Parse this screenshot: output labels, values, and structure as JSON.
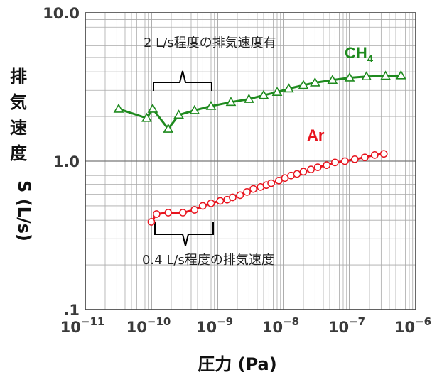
{
  "chart_data": {
    "type": "line",
    "title": "",
    "xlabel": "圧力 (Pa)",
    "ylabel_chars": [
      "排",
      "気",
      "速",
      "度"
    ],
    "ylabel_unit": "S (L/s)",
    "xscale": "log",
    "yscale": "log",
    "xlim": [
      1e-11,
      1e-06
    ],
    "ylim": [
      0.1,
      10
    ],
    "grid": true,
    "x_tick_labels": [
      {
        "base": "10",
        "exp": "−11"
      },
      {
        "base": "10",
        "exp": "−10"
      },
      {
        "base": "10",
        "exp": "−9"
      },
      {
        "base": "10",
        "exp": "−8"
      },
      {
        "base": "10",
        "exp": "−7"
      },
      {
        "base": "10",
        "exp": "−6"
      }
    ],
    "y_tick_labels": [
      ".1",
      "1.0",
      "10.0"
    ],
    "series": [
      {
        "name": "CH4",
        "label_main": "CH",
        "label_sub": "4",
        "color": "#1e8a1e",
        "marker": "triangle",
        "x": [
          3.2e-11,
          8.5e-11,
          1.05e-10,
          1.8e-10,
          2.6e-10,
          4.5e-10,
          8e-10,
          1.6e-09,
          3e-09,
          5e-09,
          8e-09,
          1.2e-08,
          2e-08,
          3e-08,
          5.5e-08,
          1e-07,
          1.8e-07,
          3.5e-07,
          6e-07
        ],
        "y": [
          2.25,
          1.95,
          2.25,
          1.65,
          2.05,
          2.2,
          2.35,
          2.5,
          2.62,
          2.78,
          2.92,
          3.08,
          3.25,
          3.38,
          3.52,
          3.65,
          3.72,
          3.75,
          3.78
        ]
      },
      {
        "name": "Ar",
        "label_main": "Ar",
        "label_sub": "",
        "color": "#e8141e",
        "marker": "circle",
        "x": [
          1e-10,
          1.2e-10,
          1.8e-10,
          3e-10,
          4.5e-10,
          6e-10,
          8e-10,
          1.1e-09,
          1.4e-09,
          1.7e-09,
          2.2e-09,
          2.8e-09,
          3.5e-09,
          4.5e-09,
          5.5e-09,
          6.5e-09,
          8.5e-09,
          1.05e-08,
          1.3e-08,
          1.6e-08,
          2e-08,
          2.6e-08,
          3.3e-08,
          4.5e-08,
          6e-08,
          8.5e-08,
          1.2e-07,
          1.7e-07,
          2.4e-07,
          3.3e-07
        ],
        "y": [
          0.39,
          0.44,
          0.45,
          0.45,
          0.47,
          0.5,
          0.52,
          0.54,
          0.55,
          0.57,
          0.59,
          0.62,
          0.65,
          0.67,
          0.69,
          0.71,
          0.74,
          0.77,
          0.8,
          0.82,
          0.85,
          0.88,
          0.91,
          0.94,
          0.98,
          1.0,
          1.03,
          1.06,
          1.1,
          1.12
        ]
      }
    ],
    "annotations": [
      {
        "text": "2 L/s程度の排気速度有",
        "position": "above CH4 series, 1e-10 to 1e-9"
      },
      {
        "text": "0.4 L/s程度の排気速度",
        "position": "below Ar series, 1e-10 to 1e-9"
      }
    ]
  }
}
